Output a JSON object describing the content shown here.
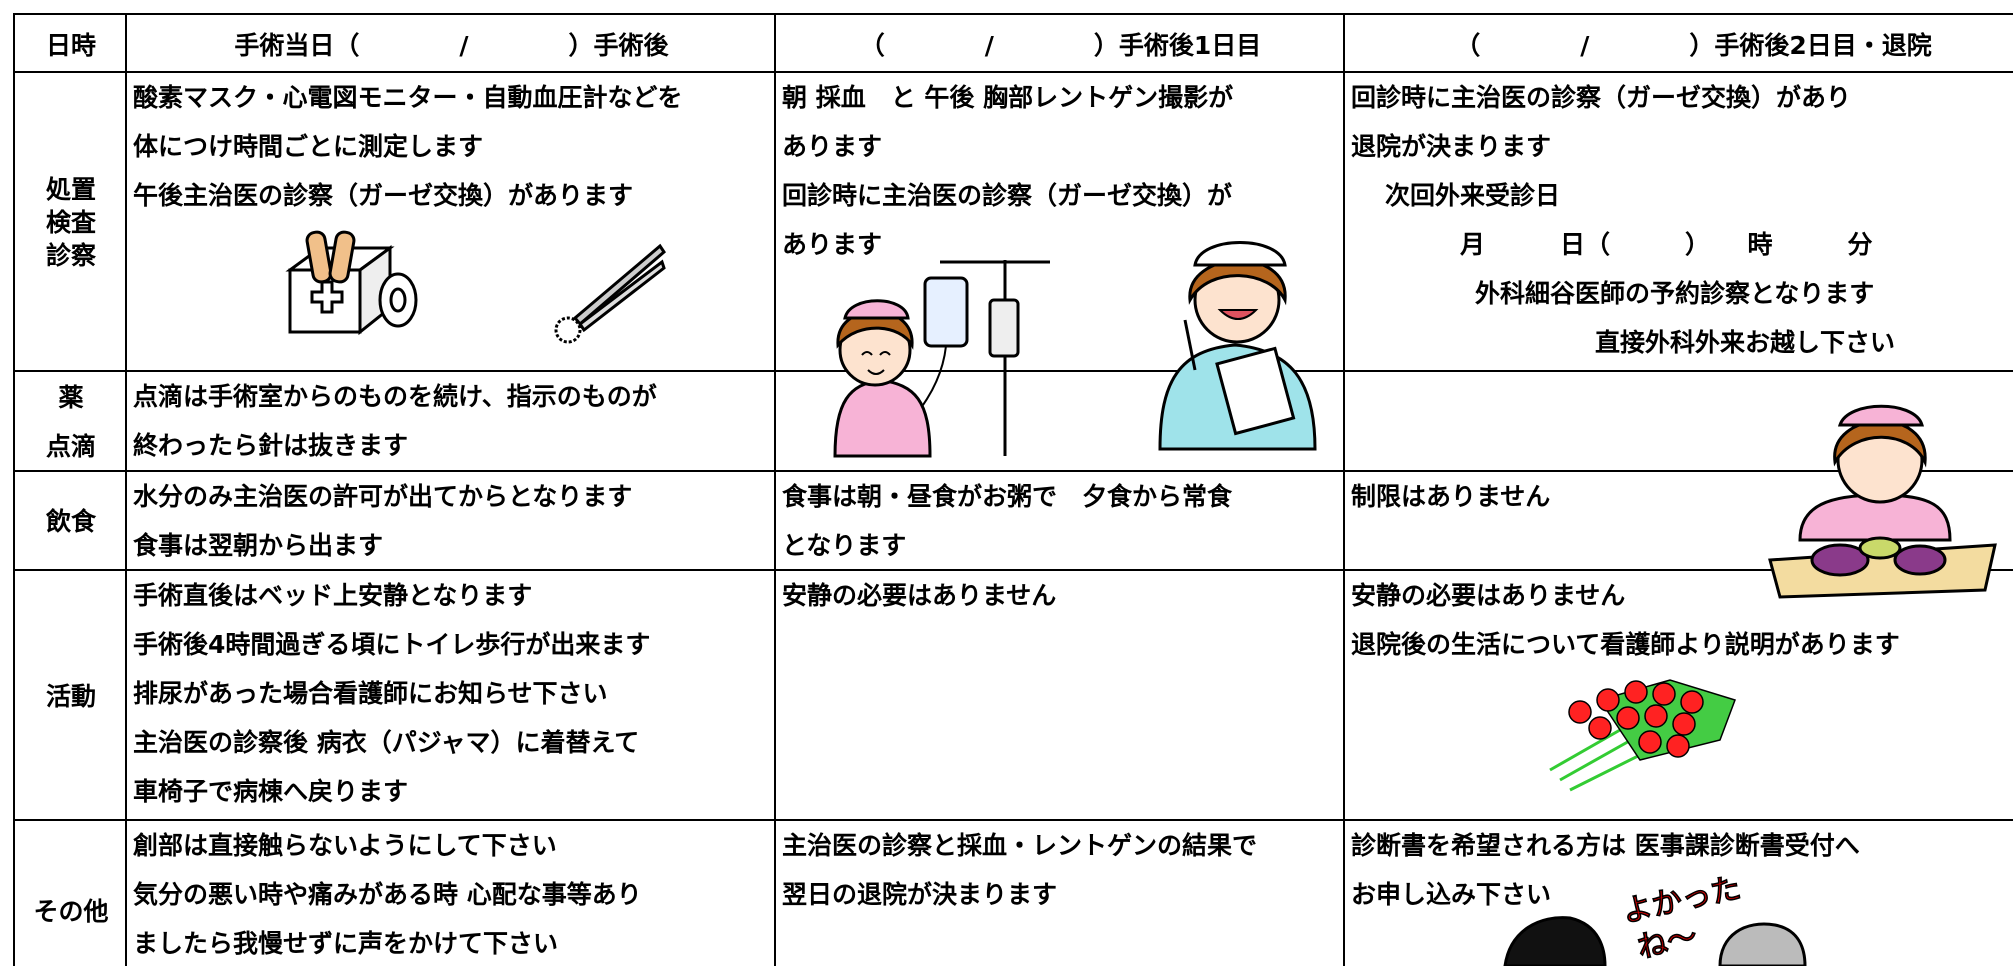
{
  "table": {
    "header": [
      "日時",
      "手術当日（　　　　/　　　　）手術後",
      "（　　　　/　　　　）手術後1日目",
      "（　　　　/　　　　）手術後2日目・退院"
    ],
    "rows": [
      {
        "label": [
          "処置",
          "検査",
          "診察"
        ],
        "cells": [
          {
            "lines": [
              "酸素マスク・心電図モニター・自動血圧計などを",
              "体につけ時間ごとに測定します",
              "午後主治医の診察（ガーゼ交換）があります"
            ]
          },
          {
            "lines": [
              "朝 採血　と 午後 胸部レントゲン撮影が",
              "あります",
              "回診時に主治医の診察（ガーゼ交換）が",
              "あります"
            ]
          },
          {
            "lines": [
              "回診時に主治医の診察（ガーゼ交換）があり",
              "退院が決まります",
              "次回外来受診日",
              "月　　　日（　　　）　　時　　　分",
              "外科細谷医師の予約診察となります",
              "直接外科外来お越し下さい"
            ]
          }
        ]
      },
      {
        "label": [
          "薬",
          "点滴"
        ],
        "cells": [
          {
            "lines": [
              "点滴は手術室からのものを続け、指示のものが",
              "終わったら針は抜きます"
            ]
          },
          {
            "lines": []
          },
          {
            "lines": []
          }
        ]
      },
      {
        "label": [
          "飲食"
        ],
        "cells": [
          {
            "lines": [
              "水分のみ主治医の許可が出てからとなります",
              "食事は翌朝から出ます"
            ]
          },
          {
            "lines": [
              "食事は朝・昼食がお粥で　夕食から常食",
              "となります"
            ]
          },
          {
            "lines": [
              "制限はありません"
            ]
          }
        ]
      },
      {
        "label": [
          "活動"
        ],
        "cells": [
          {
            "lines": [
              "手術直後はベッド上安静となります",
              "手術後4時間過ぎる頃にトイレ歩行が出来ます",
              "排尿があった場合看護師にお知らせ下さい",
              "主治医の診察後 病衣（パジャマ）に着替えて",
              "車椅子で病棟へ戻ります"
            ]
          },
          {
            "lines": [
              "安静の必要はありません"
            ]
          },
          {
            "lines": [
              "安静の必要はありません",
              "退院後の生活について看護師より説明があります"
            ]
          }
        ]
      },
      {
        "label": [
          "その他"
        ],
        "cells": [
          {
            "lines": [
              "創部は直接触らないようにして下さい",
              "気分の悪い時や痛みがある時 心配な事等あり",
              "ましたら我慢せずに声をかけて下さい"
            ]
          },
          {
            "lines": [
              "主治医の診察と採血・レントゲンの結果で",
              "翌日の退院が決まります"
            ]
          },
          {
            "lines": [
              "診断書を希望される方は 医事課診断書受付へ",
              "お申し込み下さい"
            ]
          }
        ]
      }
    ],
    "illustration_caption": [
      "よかった",
      "ね〜"
    ]
  }
}
